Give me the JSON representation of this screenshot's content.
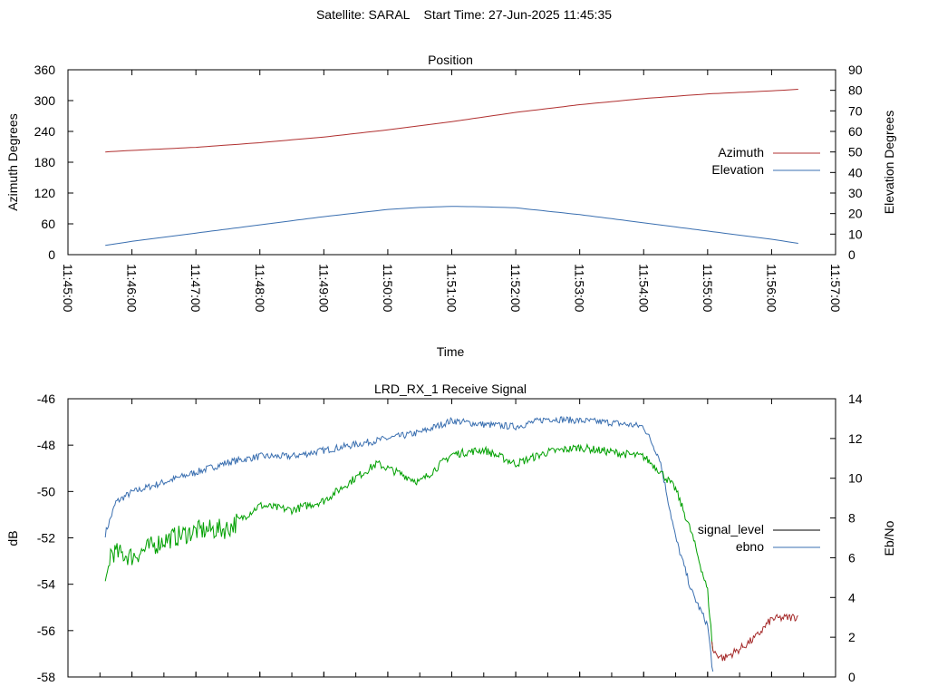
{
  "page": {
    "title": "Satellite: SARAL    Start Time: 27-Jun-2025 11:45:35"
  },
  "colors": {
    "azimuth": "#b03030",
    "elevation": "#3a6fb0",
    "signal_level": "#000000",
    "ebno": "#3a6fb0",
    "signal_trace_low": "#a52a2a",
    "signal_trace_high": "#00a000"
  },
  "chart_data": [
    {
      "type": "line",
      "title": "Position",
      "xlabel": "Time",
      "ylabel": "Azimuth Degrees",
      "y2label": "Elevation Degrees",
      "ylim": [
        0,
        360
      ],
      "y2lim": [
        0,
        90
      ],
      "yticks": [
        0,
        60,
        120,
        180,
        240,
        300,
        360
      ],
      "y2ticks": [
        0,
        10,
        20,
        30,
        40,
        50,
        60,
        70,
        80,
        90
      ],
      "xticks": [
        "11:45:00",
        "11:46:00",
        "11:47:00",
        "11:48:00",
        "11:49:00",
        "11:50:00",
        "11:51:00",
        "11:52:00",
        "11:53:00",
        "11:54:00",
        "11:55:00",
        "11:56:00",
        "11:57:00"
      ],
      "legend_position": "right",
      "series": [
        {
          "name": "Azimuth",
          "axis": "left",
          "x": [
            "11:45:35",
            "11:46:00",
            "11:47:00",
            "11:48:00",
            "11:49:00",
            "11:50:00",
            "11:51:00",
            "11:52:00",
            "11:53:00",
            "11:54:00",
            "11:55:00",
            "11:56:00",
            "11:56:25"
          ],
          "values": [
            200,
            203,
            209,
            218,
            229,
            243,
            259,
            277,
            292,
            304,
            313,
            319,
            322
          ]
        },
        {
          "name": "Elevation",
          "axis": "right",
          "x": [
            "11:45:35",
            "11:46:00",
            "11:47:00",
            "11:48:00",
            "11:49:00",
            "11:50:00",
            "11:50:30",
            "11:51:00",
            "11:51:30",
            "11:52:00",
            "11:53:00",
            "11:54:00",
            "11:55:00",
            "11:56:00",
            "11:56:25"
          ],
          "values": [
            4.5,
            6.5,
            10.5,
            14.5,
            18.5,
            22,
            23,
            23.5,
            23.3,
            22.8,
            19.5,
            15.5,
            11.5,
            7.5,
            5.5
          ]
        }
      ]
    },
    {
      "type": "line",
      "title": "LRD_RX_1 Receive Signal",
      "ylabel": "dB",
      "y2label": "Eb/No",
      "ylim": [
        -58,
        -46
      ],
      "y2lim": [
        0,
        14
      ],
      "yticks": [
        -58,
        -56,
        -54,
        -52,
        -50,
        -48,
        -46
      ],
      "y2ticks": [
        0,
        2,
        4,
        6,
        8,
        10,
        12,
        14
      ],
      "legend_position": "right",
      "series": [
        {
          "name": "signal_level",
          "axis": "left",
          "x": [
            "11:45:35",
            "11:45:40",
            "11:46:00",
            "11:46:30",
            "11:47:00",
            "11:47:30",
            "11:48:00",
            "11:48:30",
            "11:49:00",
            "11:49:30",
            "11:49:50",
            "11:50:10",
            "11:50:30",
            "11:51:00",
            "11:51:30",
            "11:52:00",
            "11:52:30",
            "11:53:00",
            "11:53:30",
            "11:54:00",
            "11:54:15",
            "11:54:30",
            "11:54:45",
            "11:55:00",
            "11:55:05",
            "11:55:15",
            "11:55:30",
            "11:55:45",
            "11:56:00",
            "11:56:25"
          ],
          "values": [
            -54.3,
            -52.6,
            -52.8,
            -52.1,
            -51.7,
            -51.6,
            -50.6,
            -50.8,
            -50.4,
            -49.4,
            -48.8,
            -49.2,
            -49.6,
            -48.4,
            -48.2,
            -48.8,
            -48.3,
            -48.1,
            -48.3,
            -48.5,
            -49.1,
            -49.9,
            -51.8,
            -54.3,
            -56.9,
            -57.2,
            -56.8,
            -56.3,
            -55.5,
            -55.4
          ]
        },
        {
          "name": "ebno",
          "axis": "right",
          "x": [
            "11:45:35",
            "11:45:45",
            "11:46:00",
            "11:46:30",
            "11:47:00",
            "11:47:30",
            "11:48:00",
            "11:48:30",
            "11:49:00",
            "11:49:30",
            "11:50:00",
            "11:50:30",
            "11:51:00",
            "11:51:30",
            "11:52:00",
            "11:52:30",
            "11:53:00",
            "11:53:30",
            "11:54:00",
            "11:54:15",
            "11:54:30",
            "11:54:45",
            "11:55:00",
            "11:55:05"
          ],
          "values": [
            7.2,
            8.8,
            9.3,
            9.8,
            10.3,
            10.8,
            11.1,
            11.1,
            11.4,
            11.7,
            12.0,
            12.3,
            12.9,
            12.7,
            12.6,
            13.0,
            12.9,
            12.8,
            12.6,
            11.0,
            7.0,
            4.3,
            2.6,
            0.2
          ]
        }
      ]
    }
  ]
}
